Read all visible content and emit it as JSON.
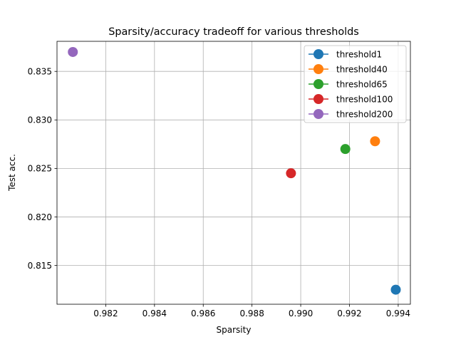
{
  "chart_data": {
    "type": "scatter",
    "title": "Sparsity/accuracy tradeoff for various thresholds",
    "xlabel": "Sparsity",
    "ylabel": "Test acc.",
    "xlim": [
      0.98,
      0.9945
    ],
    "ylim": [
      0.811,
      0.8381
    ],
    "xticks": [
      0.982,
      0.984,
      0.986,
      0.988,
      0.99,
      0.992,
      0.994
    ],
    "xtick_labels": [
      "0.982",
      "0.984",
      "0.986",
      "0.988",
      "0.990",
      "0.992",
      "0.994"
    ],
    "yticks": [
      0.815,
      0.82,
      0.825,
      0.83,
      0.835
    ],
    "ytick_labels": [
      "0.815",
      "0.820",
      "0.825",
      "0.830",
      "0.835"
    ],
    "grid": true,
    "legend_position": "top-right",
    "series": [
      {
        "name": "threshold1",
        "color": "#1f77b4",
        "x": 0.9939,
        "y": 0.8125
      },
      {
        "name": "threshold40",
        "color": "#ff7f0e",
        "x": 0.99305,
        "y": 0.8278
      },
      {
        "name": "threshold65",
        "color": "#2ca02c",
        "x": 0.99183,
        "y": 0.827
      },
      {
        "name": "threshold100",
        "color": "#d62728",
        "x": 0.9896,
        "y": 0.8245
      },
      {
        "name": "threshold200",
        "color": "#9467bd",
        "x": 0.98065,
        "y": 0.837
      }
    ]
  }
}
